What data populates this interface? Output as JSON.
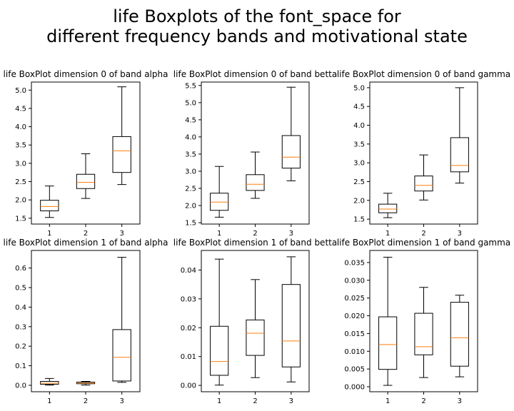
{
  "figure": {
    "title_line1": "life Boxplots of the font_space for",
    "title_line2": "different frequency bands and motivational state"
  },
  "colors": {
    "box": "#000000",
    "median": "#ff7f0e",
    "axes": "#000000"
  },
  "chart_data": [
    {
      "type": "boxplot",
      "title": "life BoxPlot dimension 0 of band alpha",
      "categories": [
        "1",
        "2",
        "3"
      ],
      "yticks": [
        "1.5",
        "2.0",
        "2.5",
        "3.0",
        "3.5",
        "4.0",
        "4.5",
        "5.0"
      ],
      "ylim": [
        1.34,
        5.22
      ],
      "boxes": [
        {
          "whislo": 1.52,
          "q1": 1.7,
          "med": 1.82,
          "q3": 1.99,
          "whishi": 2.38
        },
        {
          "whislo": 2.04,
          "q1": 2.31,
          "med": 2.48,
          "q3": 2.7,
          "whishi": 3.26
        },
        {
          "whislo": 2.42,
          "q1": 2.75,
          "med": 3.34,
          "q3": 3.73,
          "whishi": 5.09
        }
      ]
    },
    {
      "type": "boxplot",
      "title": "life BoxPlot dimension 0 of band betta",
      "categories": [
        "1",
        "2",
        "3"
      ],
      "yticks": [
        "1.5",
        "2.0",
        "2.5",
        "3.0",
        "3.5",
        "4.0",
        "4.5",
        "5.0",
        "5.5"
      ],
      "ylim": [
        1.46,
        5.6
      ],
      "boxes": [
        {
          "whislo": 1.66,
          "q1": 1.86,
          "med": 2.1,
          "q3": 2.36,
          "whishi": 3.14
        },
        {
          "whislo": 2.21,
          "q1": 2.44,
          "med": 2.62,
          "q3": 2.9,
          "whishi": 3.56
        },
        {
          "whislo": 2.72,
          "q1": 3.09,
          "med": 3.41,
          "q3": 4.04,
          "whishi": 5.45
        }
      ]
    },
    {
      "type": "boxplot",
      "title": "life BoxPlot dimension 0 of band gamma",
      "categories": [
        "1",
        "2",
        "3"
      ],
      "yticks": [
        "1.5",
        "2.0",
        "2.5",
        "3.0",
        "3.5",
        "4.0",
        "4.5",
        "5.0"
      ],
      "ylim": [
        1.37,
        5.15
      ],
      "boxes": [
        {
          "whislo": 1.54,
          "q1": 1.67,
          "med": 1.77,
          "q3": 1.9,
          "whishi": 2.19
        },
        {
          "whislo": 2.01,
          "q1": 2.25,
          "med": 2.4,
          "q3": 2.65,
          "whishi": 3.21
        },
        {
          "whislo": 2.46,
          "q1": 2.76,
          "med": 2.93,
          "q3": 3.67,
          "whishi": 5.0
        }
      ]
    },
    {
      "type": "boxplot",
      "title": "life BoxPlot dimension 1 of band alpha",
      "categories": [
        "1",
        "2",
        "3"
      ],
      "yticks": [
        "0.0",
        "0.1",
        "0.2",
        "0.3",
        "0.4",
        "0.5",
        "0.6"
      ],
      "ylim": [
        -0.033,
        0.69
      ],
      "boxes": [
        {
          "whislo": 0.001,
          "q1": 0.005,
          "med": 0.011,
          "q3": 0.02,
          "whishi": 0.035
        },
        {
          "whislo": 0.001,
          "q1": 0.008,
          "med": 0.011,
          "q3": 0.016,
          "whishi": 0.02
        },
        {
          "whislo": 0.015,
          "q1": 0.022,
          "med": 0.143,
          "q3": 0.285,
          "whishi": 0.655
        }
      ]
    },
    {
      "type": "boxplot",
      "title": "life BoxPlot dimension 1 of band betta",
      "categories": [
        "1",
        "2",
        "3"
      ],
      "yticks": [
        "0.00",
        "0.01",
        "0.02",
        "0.03",
        "0.04"
      ],
      "ylim": [
        -0.0022,
        0.0468
      ],
      "boxes": [
        {
          "whislo": 0.0001,
          "q1": 0.0035,
          "med": 0.0083,
          "q3": 0.0205,
          "whishi": 0.0438
        },
        {
          "whislo": 0.0027,
          "q1": 0.0104,
          "med": 0.0181,
          "q3": 0.0227,
          "whishi": 0.0367
        },
        {
          "whislo": 0.0012,
          "q1": 0.0064,
          "med": 0.0154,
          "q3": 0.035,
          "whishi": 0.0446
        }
      ]
    },
    {
      "type": "boxplot",
      "title": "life BoxPlot dimension 1 of band gamma",
      "categories": [
        "1",
        "2",
        "3"
      ],
      "yticks": [
        "0.000",
        "0.005",
        "0.010",
        "0.015",
        "0.020",
        "0.025",
        "0.030",
        "0.035"
      ],
      "ylim": [
        -0.0014,
        0.0384
      ],
      "boxes": [
        {
          "whislo": 0.0004,
          "q1": 0.0049,
          "med": 0.0119,
          "q3": 0.0197,
          "whishi": 0.0365
        },
        {
          "whislo": 0.0026,
          "q1": 0.009,
          "med": 0.0113,
          "q3": 0.0207,
          "whishi": 0.028
        },
        {
          "whislo": 0.0028,
          "q1": 0.0058,
          "med": 0.0138,
          "q3": 0.0238,
          "whishi": 0.0258
        }
      ]
    }
  ]
}
